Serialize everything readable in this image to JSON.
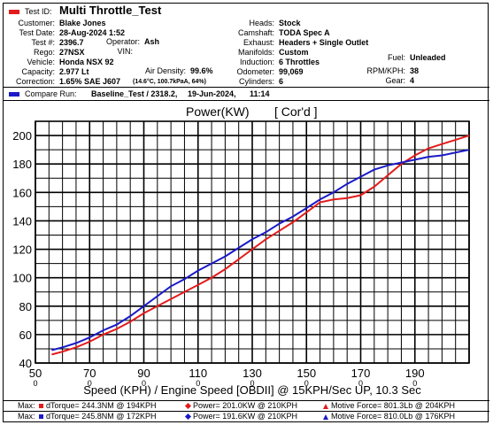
{
  "header": {
    "test_id_label": "Test ID:",
    "test_id": "Multi Throttle_Test",
    "customer_label": "Customer:",
    "customer": "Blake Jones",
    "test_date_label": "Test Date:",
    "test_date": "28-Aug-2024 1:52",
    "test_num_label": "Test #:",
    "test_num": "2396.7",
    "operator_label": "Operator:",
    "operator": "Ash",
    "rego_label": "Rego:",
    "rego": "27NSX",
    "vin_label": "VIN:",
    "vin": "",
    "vehicle_label": "Vehicle:",
    "vehicle": "Honda NSX 92",
    "capacity_label": "Capacity:",
    "capacity": "2.977 Lt",
    "air_density_label": "Air Density:",
    "air_density": "99.6%",
    "correction_label": "Correction:",
    "correction": "1.65% SAE J607",
    "correction_detail": "(14.6°C, 100.7kPaA, 64%)",
    "heads_label": "Heads:",
    "heads": "Stock",
    "camshaft_label": "Camshaft:",
    "camshaft": "TODA Spec A",
    "exhaust_label": "Exhaust:",
    "exhaust": "Headers + Single Outlet",
    "manifolds_label": "Manifolds:",
    "manifolds": "Custom",
    "induction_label": "Induction:",
    "induction": "6 Throttles",
    "odometer_label": "Odometer:",
    "odometer": "99,069",
    "cylinders_label": "Cylinders:",
    "cylinders": "6",
    "fuel_label": "Fuel:",
    "fuel": "Unleaded",
    "rpm_kph_label": "RPM/KPH:",
    "rpm_kph": "38",
    "gear_label": "Gear:",
    "gear": "4",
    "compare_label": "Compare Run:",
    "compare_run": "Baseline_Test / 2318.2,",
    "compare_date": "19-Jun-2024,",
    "compare_time": "11:14"
  },
  "colors": {
    "test_run": "#e31b1b",
    "compare_run": "#1a1ac8",
    "grid": "#000000"
  },
  "chart_data": {
    "type": "line",
    "title": "Power(KW)",
    "title_tag": "[ Cor'd ]",
    "xlabel": "Speed (KPH) / Engine Speed [OBDII] @ 15KPH/Sec UP, 10.3 Sec",
    "ylabel": "",
    "xlim": [
      50,
      210
    ],
    "ylim": [
      40,
      210
    ],
    "x_ticks": [
      50,
      70,
      90,
      110,
      130,
      150,
      170,
      190
    ],
    "x_tick_labels": [
      "50",
      "70",
      "90",
      "110",
      "130",
      "150",
      "170",
      "190"
    ],
    "x_sub_labels": [
      "0",
      "0",
      "0",
      "0",
      "0",
      "0",
      "0",
      "0"
    ],
    "y_ticks": [
      40,
      60,
      80,
      100,
      120,
      140,
      160,
      180,
      200
    ],
    "y_tick_labels": [
      "40",
      "60",
      "80",
      "100",
      "120",
      "140",
      "160",
      "180",
      "200"
    ],
    "grid": true,
    "series": [
      {
        "role": "test",
        "x": [
          56,
          60,
          65,
          70,
          75,
          80,
          85,
          90,
          95,
          100,
          105,
          110,
          115,
          120,
          125,
          130,
          135,
          140,
          145,
          150,
          155,
          160,
          165,
          170,
          175,
          180,
          185,
          190,
          195,
          200,
          205,
          210
        ],
        "y": [
          46,
          48,
          51,
          55,
          60,
          64,
          69,
          75,
          80,
          85,
          90,
          95,
          100,
          106,
          113,
          120,
          127,
          133,
          139,
          146,
          153,
          155,
          156,
          158,
          164,
          172,
          180,
          186,
          191,
          194,
          197,
          200
        ]
      },
      {
        "role": "compare",
        "x": [
          56,
          60,
          65,
          70,
          75,
          80,
          85,
          90,
          95,
          100,
          105,
          110,
          115,
          120,
          125,
          130,
          135,
          140,
          145,
          150,
          155,
          160,
          165,
          170,
          175,
          180,
          185,
          190,
          195,
          200,
          205,
          210
        ],
        "y": [
          49,
          51,
          54,
          58,
          63,
          67,
          73,
          80,
          87,
          94,
          99,
          105,
          110,
          115,
          121,
          127,
          132,
          138,
          143,
          149,
          155,
          160,
          166,
          171,
          176,
          179,
          181,
          183,
          185,
          186,
          188,
          190
        ]
      }
    ]
  },
  "footer": {
    "max_label": "Max:",
    "row1": {
      "dtorque": "dTorque= 244.3NM @ 194KPH",
      "power": "Power= 201.0KW @ 210KPH",
      "motive": "Motive Force= 801.3Lb @ 204KPH"
    },
    "row2": {
      "dtorque": "dTorque= 245.8NM @ 172KPH",
      "power": "Power= 191.6KW @ 210KPH",
      "motive": "Motive Force= 810.0Lb @ 176KPH"
    }
  }
}
